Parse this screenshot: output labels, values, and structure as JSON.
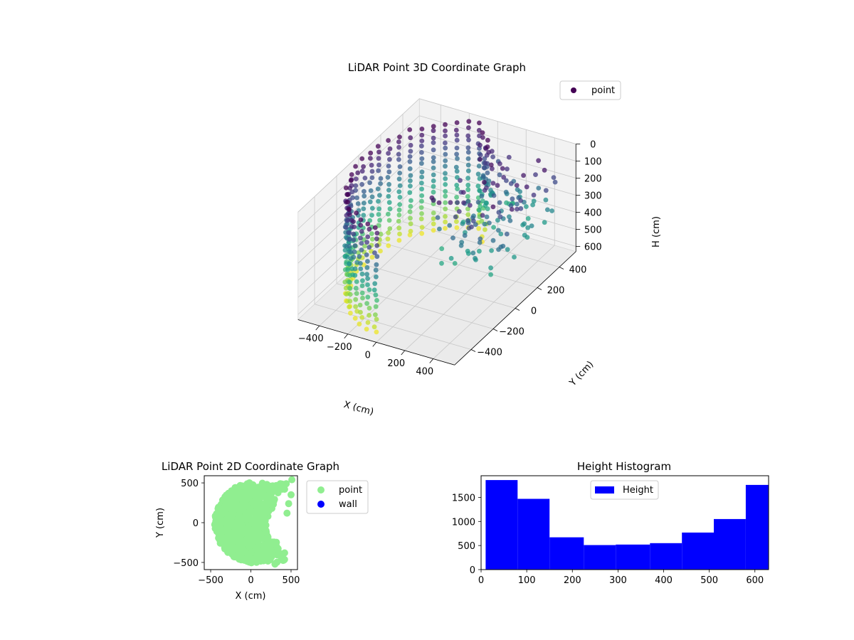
{
  "chart_data": [
    {
      "type": "scatter",
      "title": "LiDAR Point 3D Coordinate Graph",
      "xlabel": "X (cm)",
      "ylabel": "Y (cm)",
      "zlabel": "H (cm)",
      "x_ticks": [
        -400,
        -200,
        0,
        200,
        400
      ],
      "y_ticks": [
        -400,
        -200,
        0,
        200,
        400
      ],
      "z_ticks": [
        0,
        100,
        200,
        300,
        400,
        500,
        600
      ],
      "xlim": [
        -550,
        550
      ],
      "ylim": [
        -550,
        550
      ],
      "zlim": [
        0,
        630
      ],
      "z_inverted": true,
      "legend": {
        "entries": [
          "point"
        ],
        "position": "upper right"
      },
      "colormap": "viridis",
      "series": [
        {
          "name": "point",
          "color": "#440154"
        }
      ],
      "note_shape": "half-cylinder wall of radius ~500 cm, angles 100°–270°, heights 0–630 cm, plus scattered points toward +X"
    },
    {
      "type": "scatter",
      "title": "LiDAR Point 2D Coordinate Graph",
      "xlabel": "X (cm)",
      "ylabel": "Y (cm)",
      "x_ticks": [
        -500,
        0,
        500
      ],
      "y_ticks": [
        -500,
        0,
        500
      ],
      "xlim": [
        -580,
        580
      ],
      "ylim": [
        -590,
        590
      ],
      "legend": {
        "entries": [
          "point",
          "wall"
        ],
        "position": "outside right"
      },
      "series": [
        {
          "name": "point",
          "color": "#90ee90"
        },
        {
          "name": "wall",
          "color": "#0000ff"
        }
      ]
    },
    {
      "type": "bar",
      "title": "Height Histogram",
      "xlabel": "",
      "ylabel": "",
      "bins": [
        [
          10,
          80
        ],
        [
          80,
          150
        ],
        [
          150,
          225
        ],
        [
          225,
          295
        ],
        [
          295,
          370
        ],
        [
          370,
          440
        ],
        [
          440,
          510
        ],
        [
          510,
          580
        ],
        [
          580,
          630
        ]
      ],
      "values": [
        1860,
        1470,
        670,
        510,
        520,
        550,
        770,
        1050,
        1760
      ],
      "x_ticks": [
        0,
        100,
        200,
        300,
        400,
        500,
        600
      ],
      "y_ticks": [
        0,
        500,
        1000,
        1500
      ],
      "xlim": [
        0,
        630
      ],
      "ylim": [
        0,
        1950
      ],
      "legend": {
        "entries": [
          "Height"
        ],
        "position": "upper center"
      },
      "series": [
        {
          "name": "Height",
          "color": "#0000ff"
        }
      ]
    }
  ]
}
